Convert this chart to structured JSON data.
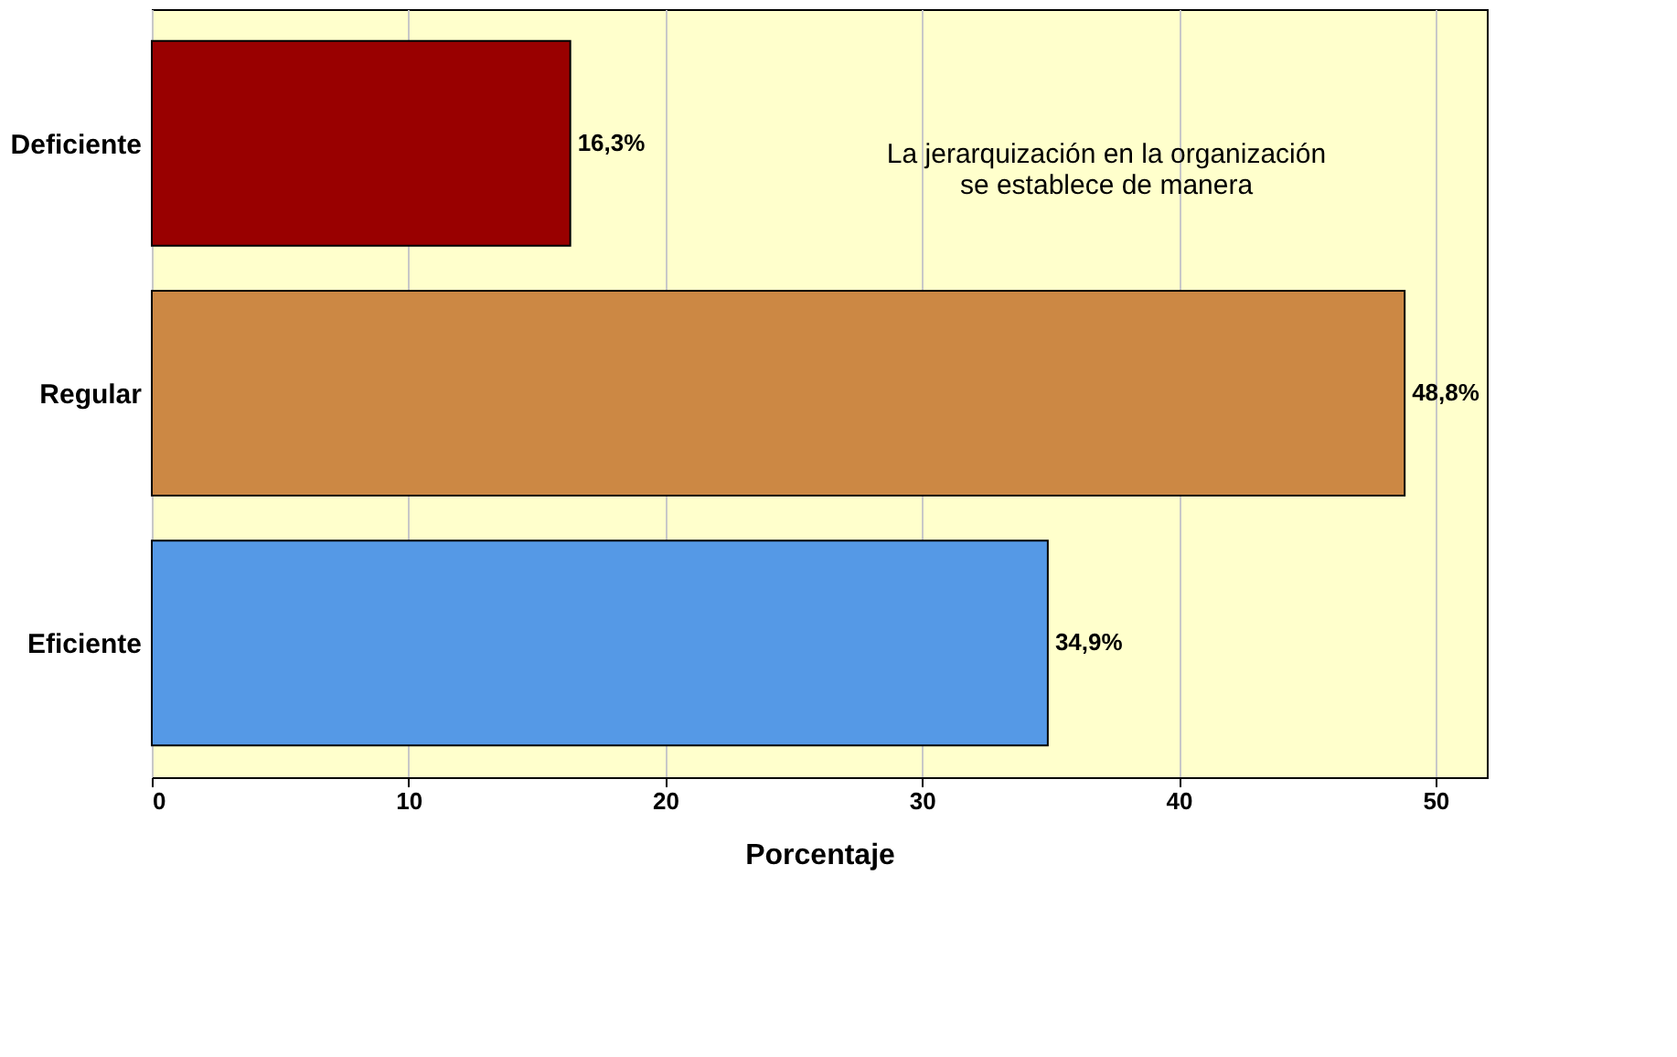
{
  "chart_data": {
    "type": "bar",
    "orientation": "horizontal",
    "categories": [
      "Deficiente",
      "Regular",
      "Eficiente"
    ],
    "values": [
      16.3,
      48.8,
      34.9
    ],
    "colors": [
      "#990000",
      "#cc8844",
      "#5599e6"
    ],
    "value_labels": [
      "16,3%",
      "48,8%",
      "34,9%"
    ],
    "xlabel": "Porcentaje",
    "xlim": [
      0,
      52
    ],
    "xticks": [
      0,
      10,
      20,
      30,
      40,
      50
    ],
    "grid": "x",
    "annotations": [
      "La jerarquización en la organización\nse establece de manera"
    ]
  }
}
